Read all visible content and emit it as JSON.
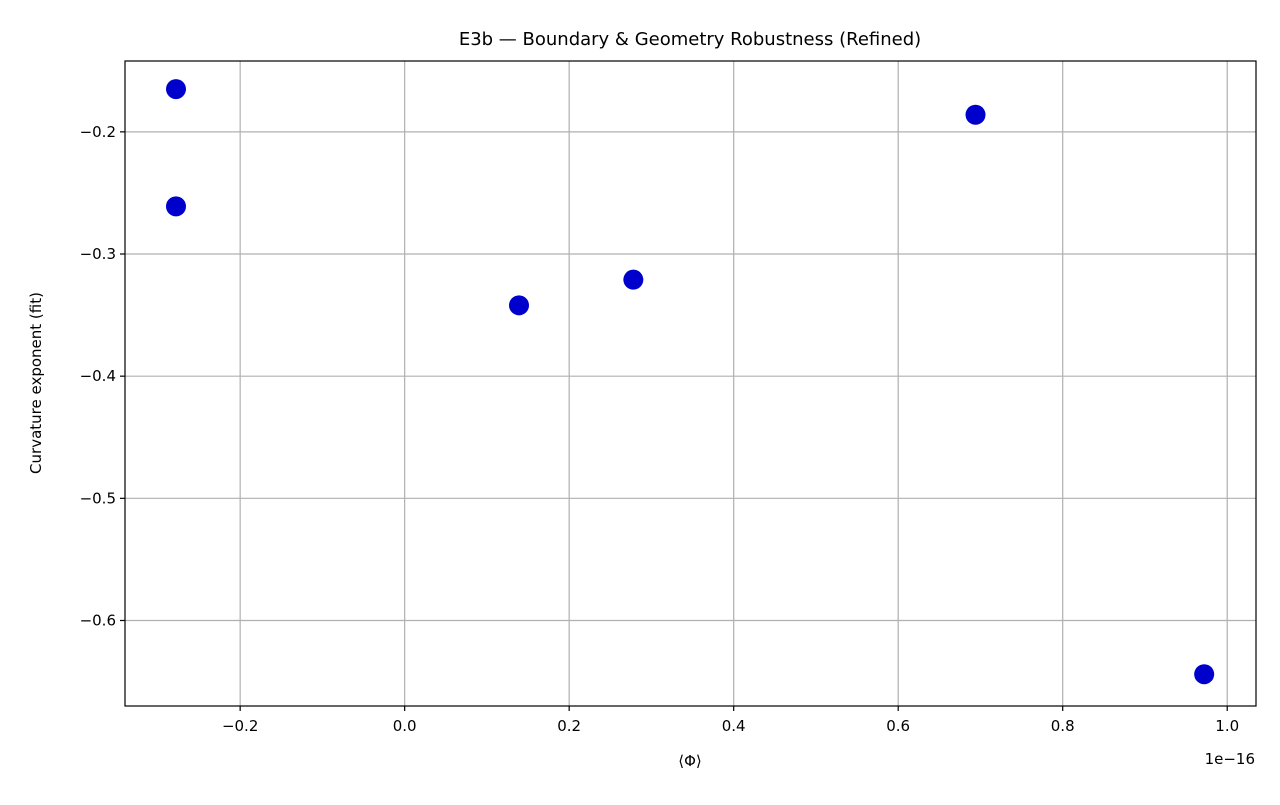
{
  "chart_data": {
    "type": "scatter",
    "title": "E3b — Boundary & Geometry Robustness (Refined)",
    "xlabel": "⟨Φ⟩",
    "ylabel": "Curvature exponent (fit)",
    "x_offset_label": "1e−16",
    "x": [
      -0.278,
      -0.278,
      0.139,
      0.278,
      0.694,
      0.972
    ],
    "y": [
      -0.165,
      -0.261,
      -0.342,
      -0.321,
      -0.186,
      -0.644
    ],
    "xlim": [
      -0.34,
      1.035
    ],
    "ylim": [
      -0.67,
      -0.142
    ],
    "xticks": [
      -0.2,
      0.0,
      0.2,
      0.4,
      0.6,
      0.8,
      1.0
    ],
    "xtick_labels": [
      "−0.2",
      "0.0",
      "0.2",
      "0.4",
      "0.6",
      "0.8",
      "1.0"
    ],
    "yticks": [
      -0.2,
      -0.3,
      -0.4,
      -0.5,
      -0.6
    ],
    "ytick_labels": [
      "−0.2",
      "−0.3",
      "−0.4",
      "−0.5",
      "−0.6"
    ],
    "grid": true,
    "marker_color": "#0000cc"
  }
}
